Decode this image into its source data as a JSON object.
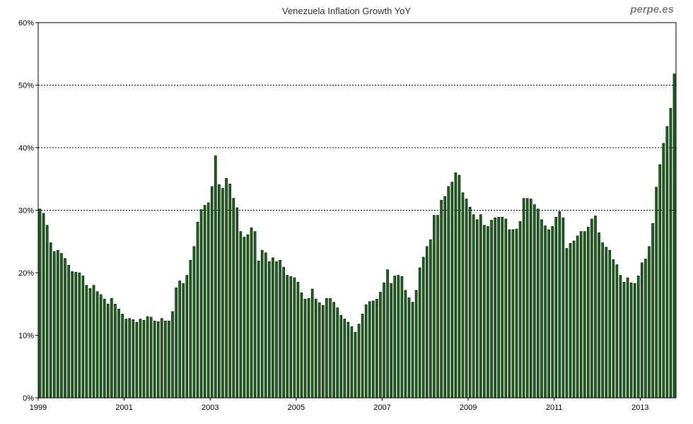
{
  "chart_data": {
    "type": "bar",
    "title": "Venezuela Inflation Growth YoY",
    "watermark": "perpe.es",
    "y_ticks": [
      "0%",
      "10%",
      "20%",
      "30%",
      "40%",
      "50%",
      "60%"
    ],
    "x_ticks": [
      {
        "label": "1999",
        "year": 1999
      },
      {
        "label": "2001",
        "year": 2001
      },
      {
        "label": "2003",
        "year": 2003
      },
      {
        "label": "2005",
        "year": 2005
      },
      {
        "label": "2007",
        "year": 2007
      },
      {
        "label": "2009",
        "year": 2009
      },
      {
        "label": "2011",
        "year": 2011
      },
      {
        "label": "2013",
        "year": 2013
      }
    ],
    "ylim": [
      0,
      60
    ],
    "gridlines": [
      30,
      40,
      50
    ],
    "bar_color": "#1a6b1a",
    "bar_edge_color": "#000000",
    "series": [
      {
        "start": "1999-01",
        "values": [
          30.2,
          29.5,
          27.6,
          24.8,
          23.4,
          23.6,
          23.1,
          22.3,
          21.2,
          20.2,
          20.1,
          20.0,
          19.5,
          18.0,
          17.5,
          18.0,
          17.0,
          16.5,
          15.8,
          15.0,
          15.9,
          15.0,
          14.2,
          13.4,
          12.6,
          12.7,
          12.5,
          12.1,
          12.6,
          12.4,
          13.0,
          12.9,
          12.3,
          12.2,
          12.7,
          12.3,
          12.3,
          13.8,
          17.6,
          18.7,
          18.3,
          19.6,
          22.0,
          24.2,
          28.1,
          30.1,
          30.8,
          31.2,
          33.8,
          38.7,
          34.1,
          33.5,
          35.1,
          34.2,
          31.9,
          30.4,
          26.6,
          25.7,
          26.1,
          27.2,
          26.6,
          21.9,
          23.6,
          23.2,
          21.8,
          22.4,
          21.8,
          22.0,
          20.9,
          19.6,
          19.4,
          19.2,
          18.5,
          16.8,
          15.8,
          15.9,
          17.4,
          15.8,
          15.2,
          14.8,
          15.9,
          15.9,
          15.3,
          14.4,
          13.2,
          12.6,
          12.1,
          11.4,
          10.5,
          11.8,
          13.4,
          14.9,
          15.4,
          15.5,
          15.8,
          16.9,
          18.4,
          20.5,
          18.3,
          19.5,
          19.6,
          19.4,
          17.2,
          16.0,
          15.3,
          17.2,
          20.8,
          22.5,
          24.2,
          25.3,
          29.2,
          29.2,
          31.6,
          32.2,
          33.8,
          34.5,
          36.0,
          35.6,
          32.8,
          31.8,
          30.5,
          29.3,
          28.5,
          29.3,
          27.6,
          27.4,
          28.4,
          28.8,
          28.9,
          28.9,
          28.6,
          26.9,
          26.9,
          27.0,
          28.2,
          31.9,
          31.9,
          31.8,
          30.9,
          30.2,
          28.5,
          27.5,
          26.9,
          27.4,
          28.9,
          29.8,
          28.8,
          23.9,
          24.7,
          25.1,
          25.9,
          26.6,
          26.6,
          27.3,
          28.6,
          29.1,
          26.4,
          24.8,
          24.1,
          23.6,
          22.1,
          21.3,
          19.6,
          18.5,
          19.2,
          18.4,
          18.3,
          19.5,
          21.6,
          22.2,
          24.2,
          27.9,
          33.7,
          37.3,
          40.7,
          43.4,
          46.3,
          51.8
        ]
      }
    ]
  }
}
